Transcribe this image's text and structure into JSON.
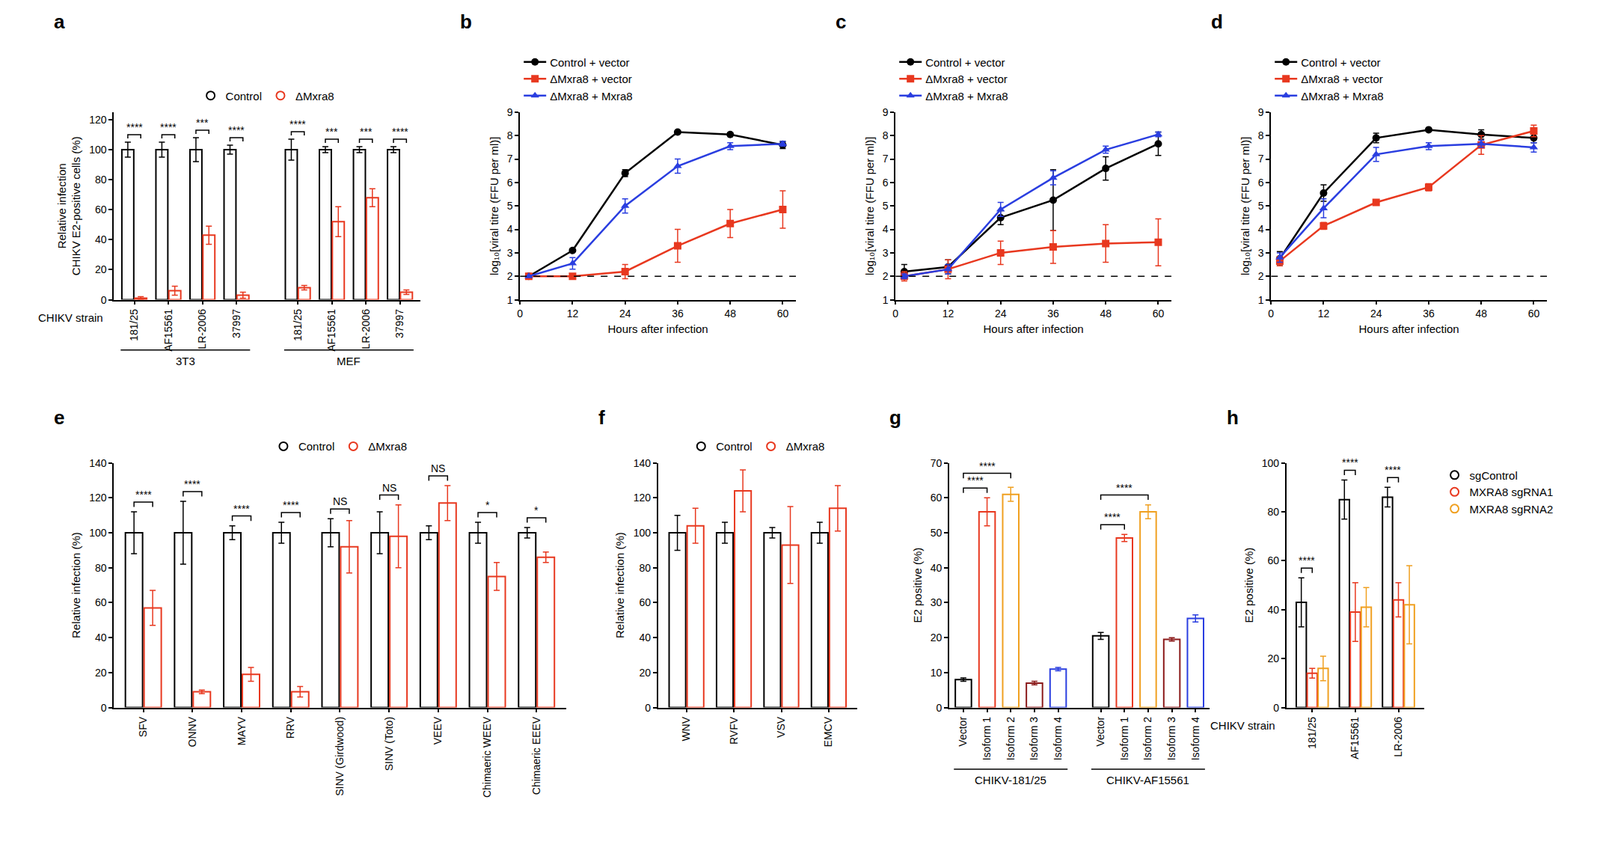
{
  "chart_data": [
    {
      "title": "a",
      "type": "bar",
      "categories": [
        "181/25",
        "AF15561",
        "LR-2006",
        "37997",
        "181/25",
        "AF15561",
        "LR-2006",
        "37997"
      ],
      "cell_type": [
        "3T3",
        "3T3",
        "3T3",
        "3T3",
        "MEF",
        "MEF",
        "MEF",
        "MEF"
      ],
      "x_label": "CHIKV strain",
      "y_label": [
        "Relative infection",
        "CHIKV E2-positive cells (%)"
      ],
      "series": [
        {
          "name": "Control",
          "color": "#000000",
          "values": [
            100,
            100,
            100,
            100,
            100,
            100,
            100,
            100
          ],
          "errors": [
            5,
            5,
            8,
            3,
            7,
            2,
            2,
            2
          ]
        },
        {
          "name": "ΔMxra8",
          "color": "#e8381f",
          "values": [
            1,
            6,
            43,
            3,
            8,
            52,
            68,
            5
          ],
          "errors": [
            1,
            3,
            6,
            2,
            1.5,
            10,
            6,
            1.5
          ]
        }
      ],
      "significance": [
        "****",
        "****",
        "***",
        "****",
        "****",
        "***",
        "***",
        "****"
      ],
      "ylim": [
        0,
        125
      ],
      "yticks": [
        0,
        20,
        40,
        60,
        80,
        100,
        120
      ],
      "legend": "top"
    },
    {
      "title": "b",
      "type": "line",
      "x": [
        2,
        12,
        24,
        36,
        48,
        60
      ],
      "x_label": "Hours after infection",
      "y_label": "log₁₀[viral titre (FFU per ml)]",
      "series": [
        {
          "name": "Control + vector",
          "color": "#000000",
          "marker": "circle",
          "values": [
            2,
            3.1,
            6.4,
            8.15,
            8.05,
            7.6
          ],
          "errors": [
            0,
            0.05,
            0.15,
            0.05,
            0.05,
            0.15
          ]
        },
        {
          "name": "ΔMxra8 + vector",
          "color": "#e8381f",
          "marker": "square",
          "values": [
            2,
            2,
            2.2,
            3.3,
            4.25,
            4.85
          ],
          "errors": [
            0,
            0,
            0.3,
            0.7,
            0.6,
            0.8
          ]
        },
        {
          "name": "ΔMxra8 + Mxra8",
          "color": "#2a3ee0",
          "marker": "triangle-up",
          "values": [
            2,
            2.55,
            5,
            6.7,
            7.55,
            7.65
          ],
          "errors": [
            0,
            0.25,
            0.3,
            0.3,
            0.15,
            0.1
          ]
        }
      ],
      "detection_limit": 2,
      "xlim": [
        0,
        63
      ],
      "xticks": [
        0,
        12,
        24,
        36,
        48,
        60
      ],
      "ylim": [
        1,
        9
      ],
      "yticks": [
        1,
        2,
        3,
        4,
        5,
        6,
        7,
        8,
        9
      ],
      "legend": "top left"
    },
    {
      "title": "c",
      "type": "line",
      "x": [
        2,
        12,
        24,
        36,
        48,
        60
      ],
      "x_label": "Hours after infection",
      "y_label": "log₁₀[viral titre (FFU per ml)]",
      "series": [
        {
          "name": "Control + vector",
          "color": "#000000",
          "marker": "circle",
          "values": [
            2.2,
            2.4,
            4.5,
            5.25,
            6.6,
            7.65
          ],
          "errors": [
            0.3,
            0.3,
            0.3,
            1.3,
            0.5,
            0.5
          ]
        },
        {
          "name": "ΔMxra8 + vector",
          "color": "#e8381f",
          "marker": "square",
          "values": [
            2,
            2.3,
            3,
            3.25,
            3.4,
            3.45
          ],
          "errors": [
            0.2,
            0.4,
            0.5,
            0.7,
            0.8,
            1
          ]
        },
        {
          "name": "ΔMxra8 + Mxra8",
          "color": "#2a3ee0",
          "marker": "triangle-up",
          "values": [
            2,
            2.3,
            4.85,
            6.2,
            7.4,
            8.05
          ],
          "errors": [
            0.1,
            0.2,
            0.3,
            0.3,
            0.15,
            0.1
          ]
        }
      ],
      "detection_limit": 2,
      "xlim": [
        0,
        63
      ],
      "xticks": [
        0,
        12,
        24,
        36,
        48,
        60
      ],
      "ylim": [
        1,
        9
      ],
      "yticks": [
        1,
        2,
        3,
        4,
        5,
        6,
        7,
        8,
        9
      ],
      "legend": "top left"
    },
    {
      "title": "d",
      "type": "line",
      "x": [
        2,
        12,
        24,
        36,
        48,
        60
      ],
      "x_label": "Hours after infection",
      "y_label": "log₁₀[viral titre (FFU per ml)]",
      "series": [
        {
          "name": "Control + vector",
          "color": "#000000",
          "marker": "circle",
          "values": [
            2.75,
            5.55,
            7.9,
            8.25,
            8.05,
            7.9
          ],
          "errors": [
            0.3,
            0.35,
            0.2,
            0.05,
            0.2,
            0.2
          ]
        },
        {
          "name": "ΔMxra8 + vector",
          "color": "#e8381f",
          "marker": "square",
          "values": [
            2.65,
            4.15,
            5.15,
            5.8,
            7.6,
            8.2
          ],
          "errors": [
            0.2,
            0.15,
            0.1,
            0.15,
            0.4,
            0.25
          ]
        },
        {
          "name": "ΔMxra8 + Mxra8",
          "color": "#2a3ee0",
          "marker": "triangle-up",
          "values": [
            2.8,
            4.9,
            7.2,
            7.55,
            7.65,
            7.5
          ],
          "errors": [
            0.2,
            0.4,
            0.3,
            0.15,
            0.15,
            0.2
          ]
        }
      ],
      "detection_limit": 2,
      "xlim": [
        0,
        63
      ],
      "xticks": [
        0,
        12,
        24,
        36,
        48,
        60
      ],
      "ylim": [
        1,
        9
      ],
      "yticks": [
        1,
        2,
        3,
        4,
        5,
        6,
        7,
        8,
        9
      ],
      "legend": "top left"
    },
    {
      "title": "e",
      "type": "bar",
      "categories": [
        "SFV",
        "ONNV",
        "MAYV",
        "RRV",
        "SINV (Girdwood)",
        "SINV (Toto)",
        "VEEV",
        "Chimaeric WEEV",
        "Chimaeric EEEV"
      ],
      "y_label": "Relative infection (%)",
      "series": [
        {
          "name": "Control",
          "color": "#000000",
          "values": [
            100,
            100,
            100,
            100,
            100,
            100,
            100,
            100,
            100
          ],
          "errors": [
            12,
            18,
            4,
            6,
            8,
            12,
            4,
            6,
            3
          ]
        },
        {
          "name": "ΔMxra8",
          "color": "#e8381f",
          "values": [
            57,
            9,
            19,
            9,
            92,
            98,
            117,
            75,
            86
          ],
          "errors": [
            10,
            1,
            4,
            3,
            15,
            18,
            10,
            8,
            3
          ]
        }
      ],
      "significance": [
        "****",
        "****",
        "****",
        "****",
        "NS",
        "NS",
        "NS",
        "*",
        "*"
      ],
      "ylim": [
        0,
        140
      ],
      "yticks": [
        0,
        20,
        40,
        60,
        80,
        100,
        120,
        140
      ],
      "legend": "top"
    },
    {
      "title": "f",
      "type": "bar",
      "categories": [
        "WNV",
        "RVFV",
        "VSV",
        "EMCV"
      ],
      "y_label": "Relative infection (%)",
      "series": [
        {
          "name": "Control",
          "color": "#000000",
          "values": [
            100,
            100,
            100,
            100
          ],
          "errors": [
            10,
            6,
            3,
            6
          ]
        },
        {
          "name": "ΔMxra8",
          "color": "#e8381f",
          "values": [
            104,
            124,
            93,
            114
          ],
          "errors": [
            10,
            12,
            22,
            13
          ]
        }
      ],
      "ylim": [
        0,
        140
      ],
      "yticks": [
        0,
        20,
        40,
        60,
        80,
        100,
        120,
        140
      ],
      "legend": "top"
    },
    {
      "title": "g",
      "type": "bar",
      "categories": [
        "Vector",
        "Isoform 1",
        "Isoform 2",
        "Isoform 3",
        "Isoform 4",
        "Vector",
        "Isoform 1",
        "Isoform 2",
        "Isoform 3",
        "Isoform 4"
      ],
      "group": [
        "CHIKV-181/25",
        "CHIKV-181/25",
        "CHIKV-181/25",
        "CHIKV-181/25",
        "CHIKV-181/25",
        "CHIKV-AF15561",
        "CHIKV-AF15561",
        "CHIKV-AF15561",
        "CHIKV-AF15561",
        "CHIKV-AF15561"
      ],
      "y_label": "E2 positive (%)",
      "values": [
        8,
        56,
        61,
        7,
        11,
        20.5,
        48.5,
        56,
        19.5,
        25.5
      ],
      "errors": [
        0.5,
        4,
        2,
        0.5,
        0.5,
        1,
        1,
        2,
        0.5,
        1
      ],
      "colors": [
        "#000000",
        "#e8381f",
        "#f0a020",
        "#8b1a1a",
        "#2a3ee0",
        "#000000",
        "#e8381f",
        "#f0a020",
        "#8b1a1a",
        "#2a3ee0"
      ],
      "comparisons": [
        {
          "from": 0,
          "to": 1,
          "label": "****"
        },
        {
          "from": 0,
          "to": 2,
          "label": "****"
        },
        {
          "from": 5,
          "to": 6,
          "label": "****"
        },
        {
          "from": 5,
          "to": 7,
          "label": "****"
        }
      ],
      "ylim": [
        0,
        70
      ],
      "yticks": [
        0,
        10,
        20,
        30,
        40,
        50,
        60,
        70
      ]
    },
    {
      "title": "h",
      "type": "bar",
      "categories": [
        "181/25",
        "AF15561",
        "LR-2006"
      ],
      "x_label": "CHIKV strain",
      "y_label": "E2 positive (%)",
      "series": [
        {
          "name": "sgControl",
          "color": "#000000",
          "values": [
            43,
            85,
            86
          ],
          "errors": [
            10,
            8,
            4
          ]
        },
        {
          "name": "MXRA8 sgRNA1",
          "color": "#e8381f",
          "values": [
            14,
            39,
            44
          ],
          "errors": [
            2,
            12,
            7
          ]
        },
        {
          "name": "MXRA8 sgRNA2",
          "color": "#f0a020",
          "values": [
            16,
            41,
            42
          ],
          "errors": [
            5,
            8,
            16
          ]
        }
      ],
      "significance": [
        "****",
        "****",
        "****"
      ],
      "ylim": [
        0,
        100
      ],
      "yticks": [
        0,
        20,
        40,
        60,
        80,
        100
      ],
      "legend": "right"
    }
  ]
}
